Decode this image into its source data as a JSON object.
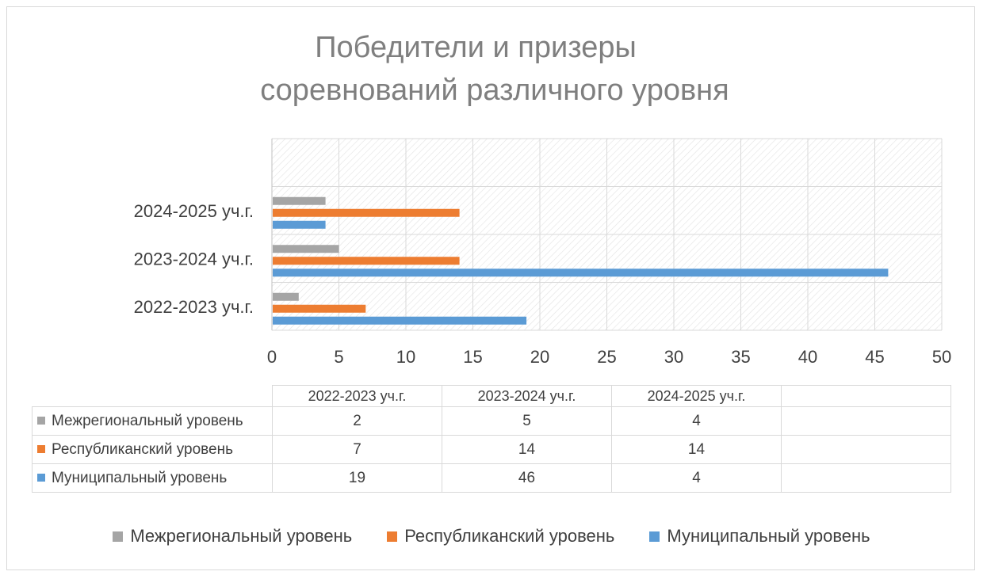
{
  "chart_data": {
    "type": "bar",
    "orientation": "horizontal",
    "title_lines": [
      "Победители и призеры",
      "соревнований различного уровня"
    ],
    "categories": [
      "2022-2023 уч.г.",
      "2023-2024 уч.г.",
      "2024-2025 уч.г."
    ],
    "series": [
      {
        "name": "Межрегиональный уровень",
        "values": [
          2,
          5,
          4
        ],
        "color": "#a5a5a5"
      },
      {
        "name": "Республиканский уровень",
        "values": [
          7,
          14,
          14
        ],
        "color": "#ed7d31"
      },
      {
        "name": "Муниципальный уровень",
        "values": [
          19,
          46,
          4
        ],
        "color": "#5b9bd5"
      }
    ],
    "xlim": [
      0,
      50
    ],
    "x_ticks": [
      "0",
      "5",
      "10",
      "15",
      "20",
      "25",
      "30",
      "35",
      "40",
      "45",
      "50"
    ],
    "grid": true,
    "legend_placement": "bottom",
    "data_table": true
  }
}
